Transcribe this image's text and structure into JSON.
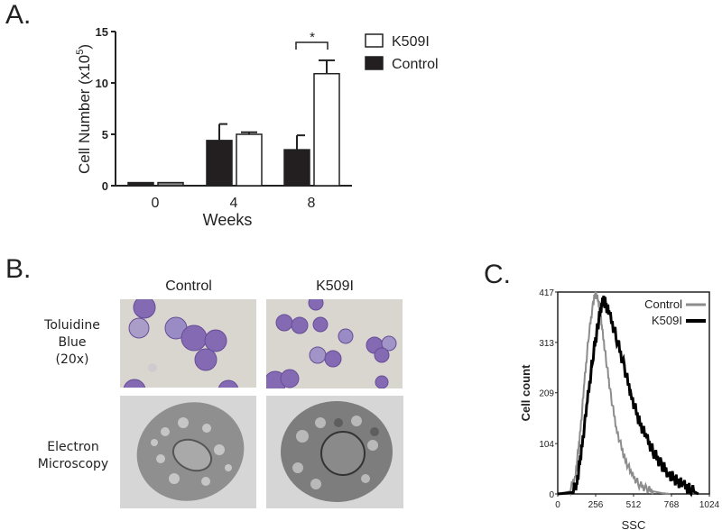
{
  "panels": {
    "a": {
      "label": "A."
    },
    "b": {
      "label": "B.",
      "columns": [
        "Control",
        "K509I"
      ],
      "rows": [
        {
          "lines": [
            "Toluidine",
            "Blue",
            "(20x)"
          ]
        },
        {
          "lines": [
            "Electron",
            "Microscopy"
          ]
        }
      ]
    },
    "c": {
      "label": "C."
    }
  },
  "colors": {
    "control_bar": "#231f20",
    "k509i_bar": "#ffffff",
    "week0_k509i_bar": "#8a8a8a",
    "hist_control": "#8c8c8c",
    "hist_k509i": "#000000",
    "toluidine_bg": "#d9d5cf",
    "cell_stain": "#6a4fa0",
    "em_bg": "#d8d8d8"
  },
  "chart_data": [
    {
      "type": "bar",
      "panel": "A",
      "title": "",
      "xlabel": "Weeks",
      "ylabel": "Cell Number (x10^5)",
      "ylabel_parts": {
        "main": "Cell Number (x10",
        "sup": "5",
        "end": ")"
      },
      "categories": [
        "0",
        "4",
        "8"
      ],
      "ylim": [
        0,
        15
      ],
      "yticks": [
        0,
        5,
        10,
        15
      ],
      "series": [
        {
          "name": "Control",
          "fill": "dark",
          "values": [
            0.3,
            4.4,
            3.5
          ],
          "error": [
            0.0,
            1.6,
            1.4
          ]
        },
        {
          "name": "K509I",
          "fill": "open",
          "values": [
            0.3,
            5.0,
            10.9
          ],
          "error": [
            0.0,
            0.2,
            1.3
          ]
        }
      ],
      "legend": [
        "K509I",
        "Control"
      ],
      "legend_position": "right",
      "annotations": [
        {
          "text": "*",
          "category": "8",
          "type": "significance-bracket"
        }
      ],
      "grid": false
    },
    {
      "type": "line",
      "panel": "C",
      "title": "",
      "xlabel": "SSC",
      "ylabel": "Cell count",
      "xlim": [
        0,
        1024
      ],
      "ylim": [
        0,
        417
      ],
      "xticks": [
        "0",
        "256",
        "512",
        "768",
        "1024"
      ],
      "yticks": [
        "0",
        "104",
        "209",
        "313",
        "417"
      ],
      "legend": [
        "Control",
        "K509I"
      ],
      "legend_position": "upper right",
      "grid": false,
      "series": [
        {
          "name": "Control",
          "x": [
            0,
            80,
            120,
            150,
            180,
            210,
            240,
            256,
            280,
            300,
            330,
            360,
            400,
            450,
            500,
            550,
            600,
            650,
            700,
            760
          ],
          "values": [
            0,
            5,
            40,
            120,
            230,
            330,
            395,
            417,
            390,
            340,
            270,
            200,
            130,
            75,
            40,
            20,
            10,
            5,
            2,
            0
          ]
        },
        {
          "name": "K509I",
          "x": [
            0,
            100,
            130,
            160,
            200,
            240,
            270,
            300,
            320,
            350,
            400,
            450,
            500,
            550,
            600,
            650,
            700,
            750,
            800,
            850,
            900,
            950
          ],
          "values": [
            0,
            3,
            25,
            90,
            190,
            290,
            345,
            400,
            395,
            370,
            320,
            260,
            200,
            150,
            115,
            85,
            60,
            42,
            28,
            18,
            8,
            0
          ]
        }
      ]
    }
  ]
}
